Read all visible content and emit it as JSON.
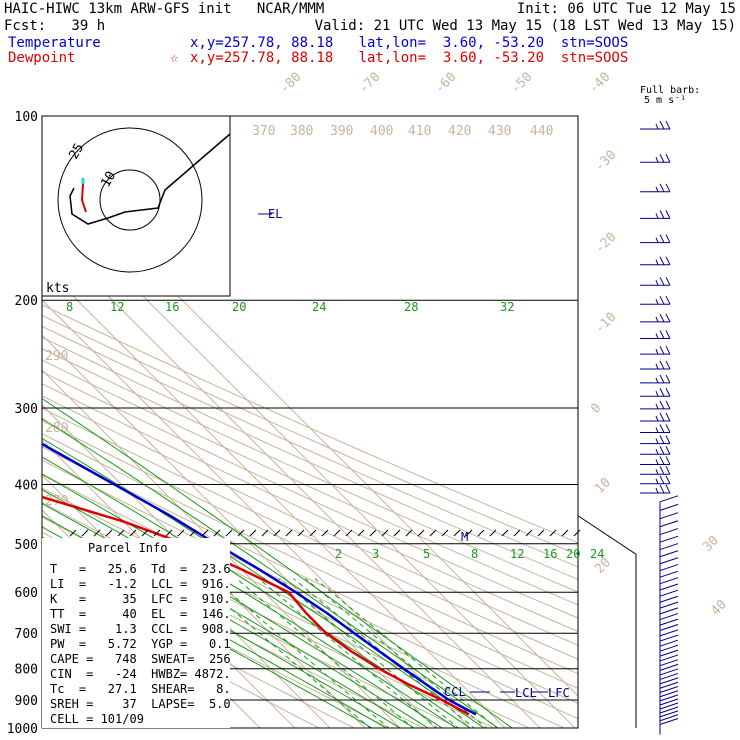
{
  "header": {
    "line1_left": "HAIC-HIWC 13km ARW-GFS init   NCAR/MMM",
    "line1_right": "Init: 06 UTC Tue 12 May 15",
    "line2_left": "Fcst:   39 h",
    "line2_right": "Valid: 21 UTC Wed 13 May 15 (18 LST Wed 13 May 15)",
    "temp_label": "Temperature",
    "temp_info": "x,y=257.78, 88.18   lat,lon=  3.60, -53.20  stn=SOOS",
    "dew_label": "Dewpoint",
    "dew_info": "x,y=257.78, 88.18   lat,lon=  3.60, -53.20  stn=SOOS",
    "dew_marker": "☆"
  },
  "colors": {
    "temperature": "#0000cc",
    "dewpoint": "#dd0000",
    "isotherm": "#c8b49c",
    "mixing_ratio": "#1a9a1a",
    "wind": "#000088"
  },
  "barb_legend": {
    "line1": "Full barb:",
    "line2": "5 m s⁻¹"
  },
  "hodograph": {
    "unit": "kts",
    "ring_labels": [
      "10",
      "25"
    ]
  },
  "chart_data": {
    "type": "skew-T log-p",
    "pressure_levels": [
      100,
      200,
      300,
      400,
      500,
      600,
      700,
      800,
      900,
      1000
    ],
    "pressure_labels": [
      "100",
      "200",
      "300",
      "400",
      "500",
      "600",
      "700",
      "800",
      "900",
      "1000"
    ],
    "isotherm_labels": [
      "-80",
      "-70",
      "-60",
      "-50",
      "-40",
      "-30",
      "-20",
      "-10",
      "0",
      "10",
      "20",
      "30",
      "40"
    ],
    "theta_labels": [
      "370",
      "380",
      "390",
      "400",
      "410",
      "420",
      "430",
      "440",
      "290",
      "280",
      "270"
    ],
    "mixing_ratio_labels_upper": [
      "8",
      "12",
      "16",
      "20",
      "24",
      "28",
      "32"
    ],
    "mixing_ratio_labels_lower": [
      "2",
      "3",
      "5",
      "8",
      "12",
      "16",
      "20",
      "24"
    ],
    "temperature_profile": [
      {
        "p": 100,
        "t": -78
      },
      {
        "p": 120,
        "t": -72
      },
      {
        "p": 150,
        "t": -63
      },
      {
        "p": 175,
        "t": -55
      },
      {
        "p": 200,
        "t": -49
      },
      {
        "p": 250,
        "t": -38
      },
      {
        "p": 300,
        "t": -29
      },
      {
        "p": 350,
        "t": -20
      },
      {
        "p": 400,
        "t": -12
      },
      {
        "p": 450,
        "t": -5
      },
      {
        "p": 500,
        "t": 0
      },
      {
        "p": 550,
        "t": 5
      },
      {
        "p": 600,
        "t": 9
      },
      {
        "p": 650,
        "t": 12
      },
      {
        "p": 700,
        "t": 14
      },
      {
        "p": 750,
        "t": 16
      },
      {
        "p": 800,
        "t": 18
      },
      {
        "p": 850,
        "t": 20
      },
      {
        "p": 900,
        "t": 22
      },
      {
        "p": 950,
        "t": 25.6
      }
    ],
    "dewpoint_profile": [
      {
        "p": 100,
        "t": -82
      },
      {
        "p": 130,
        "t": -80
      },
      {
        "p": 160,
        "t": -79
      },
      {
        "p": 190,
        "t": -74
      },
      {
        "p": 220,
        "t": -64
      },
      {
        "p": 260,
        "t": -58
      },
      {
        "p": 290,
        "t": -54
      },
      {
        "p": 300,
        "t": -54
      },
      {
        "p": 320,
        "t": -60
      },
      {
        "p": 340,
        "t": -53
      },
      {
        "p": 380,
        "t": -40
      },
      {
        "p": 420,
        "t": -36
      },
      {
        "p": 460,
        "t": -20
      },
      {
        "p": 500,
        "t": -9
      },
      {
        "p": 550,
        "t": 0
      },
      {
        "p": 600,
        "t": 7
      },
      {
        "p": 650,
        "t": 6
      },
      {
        "p": 700,
        "t": 6
      },
      {
        "p": 750,
        "t": 8
      },
      {
        "p": 800,
        "t": 11
      },
      {
        "p": 850,
        "t": 15
      },
      {
        "p": 900,
        "t": 20
      },
      {
        "p": 950,
        "t": 23.6
      }
    ],
    "annotations": [
      "EL",
      "M",
      "CCL",
      "LCL",
      "LFC"
    ]
  },
  "parcel_info": {
    "title": "Parcel Info",
    "rows": [
      "T   =   25.6  Td  =  23.6",
      "LI  =   -1.2  LCL =  916.",
      "K   =     35  LFC =  910.",
      "TT  =     40  EL  =  146.",
      "SWI =    1.3  CCL =  908.",
      "PW  =   5.72  YGP =   0.1",
      "CAPE =   748  SWEAT=  256",
      "CIN  =   -24  HWBZ= 4872.",
      "Tc  =   27.1  SHEAR=   8.",
      "SREH =    37  LAPSE=  5.0",
      "CELL = 101/09"
    ]
  }
}
